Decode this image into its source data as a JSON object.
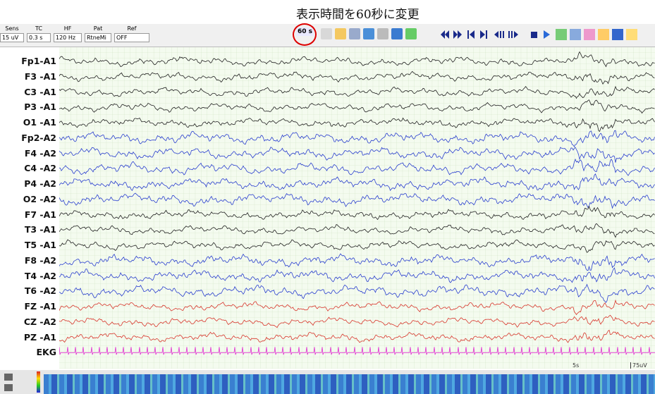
{
  "annotation": "表示時間を60秒に変更",
  "toolbar": {
    "controls": [
      {
        "label": "Sens",
        "value": "15 uV"
      },
      {
        "label": "TC",
        "value": "0.3 s"
      },
      {
        "label": "HF",
        "value": "120 Hz"
      },
      {
        "label": "Pat",
        "value": "RtneMi"
      },
      {
        "label": "Ref",
        "value": "OFF"
      }
    ],
    "duration_button": "60 s"
  },
  "channels": [
    {
      "name": "Fp1-A1",
      "color": "#222222"
    },
    {
      "name": "F3 -A1",
      "color": "#222222"
    },
    {
      "name": "C3 -A1",
      "color": "#222222"
    },
    {
      "name": "P3 -A1",
      "color": "#222222"
    },
    {
      "name": "O1 -A1",
      "color": "#222222"
    },
    {
      "name": "Fp2-A2",
      "color": "#2a3fcf"
    },
    {
      "name": "F4 -A2",
      "color": "#2a3fcf"
    },
    {
      "name": "C4 -A2",
      "color": "#2a3fcf"
    },
    {
      "name": "P4 -A2",
      "color": "#2a3fcf"
    },
    {
      "name": "O2 -A2",
      "color": "#2a3fcf"
    },
    {
      "name": "F7 -A1",
      "color": "#222222"
    },
    {
      "name": "T3 -A1",
      "color": "#222222"
    },
    {
      "name": "T5 -A1",
      "color": "#222222"
    },
    {
      "name": "F8 -A2",
      "color": "#2a3fcf"
    },
    {
      "name": "T4 -A2",
      "color": "#2a3fcf"
    },
    {
      "name": "T6 -A2",
      "color": "#2a3fcf"
    },
    {
      "name": "FZ -A1",
      "color": "#d8362c"
    },
    {
      "name": "CZ -A2",
      "color": "#d8362c"
    },
    {
      "name": "PZ -A1",
      "color": "#d8362c"
    },
    {
      "name": "EKG",
      "color": "#e030d0"
    }
  ],
  "scale": {
    "time": "5s",
    "amplitude": "75uV"
  }
}
